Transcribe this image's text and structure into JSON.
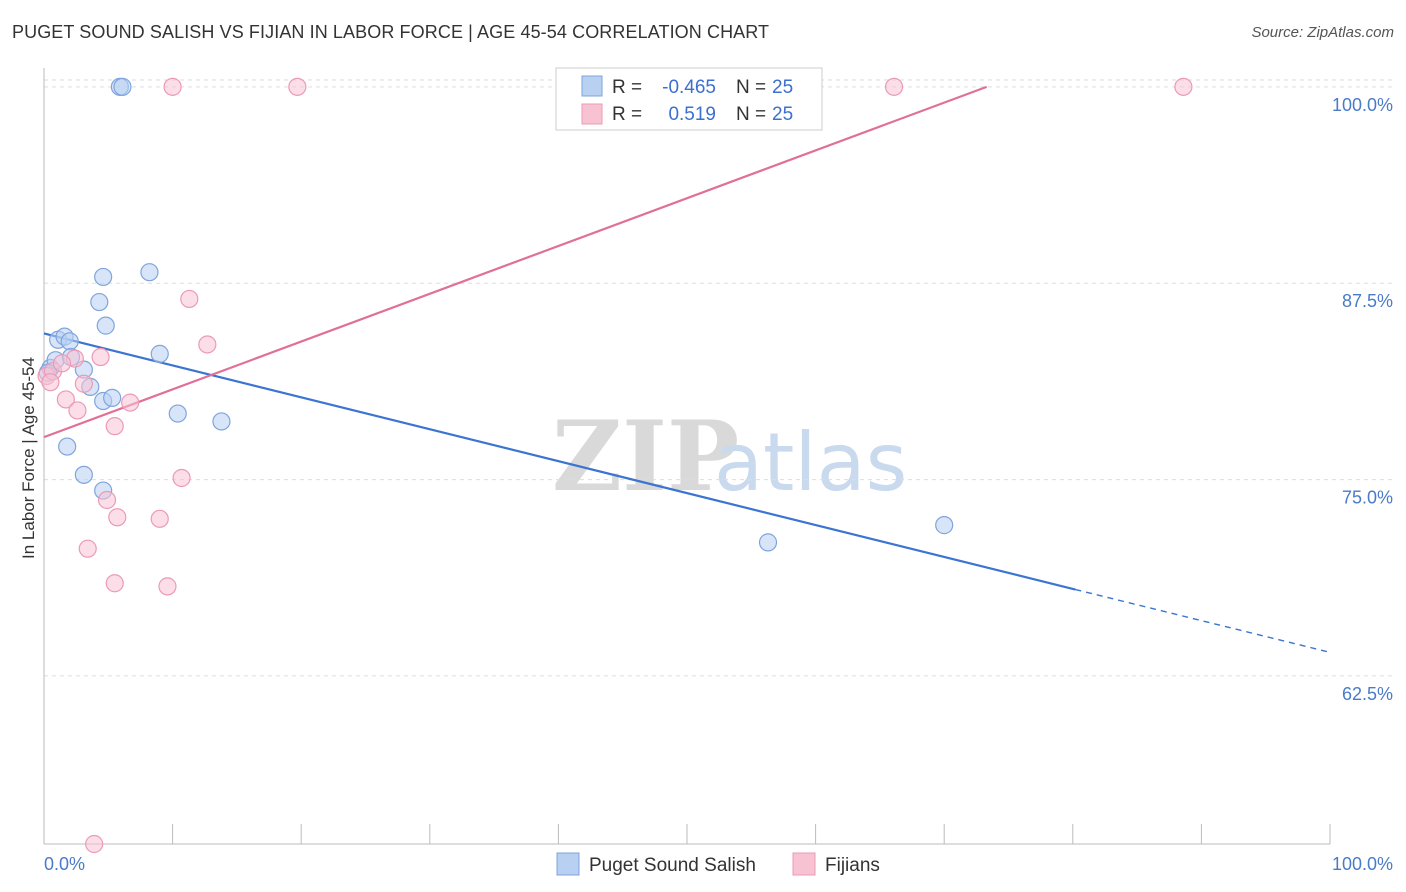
{
  "title": "PUGET SOUND SALISH VS FIJIAN IN LABOR FORCE | AGE 45-54 CORRELATION CHART",
  "source": "Source: ZipAtlas.com",
  "watermark": {
    "zip": "ZIP",
    "atlas": "atlas"
  },
  "colors": {
    "blue": "#3b74d1",
    "blue_fill": "#b8d0f2",
    "blue_stroke": "#7ea5de",
    "pink": "#e07098",
    "pink_fill": "#f7c3d3",
    "pink_stroke": "#ec9ab5",
    "tick_label": "#4a7bc8",
    "grid": "#dddddd"
  },
  "legend": {
    "rows": [
      {
        "r_label": "R =",
        "r_value": "-0.465",
        "n_label": "N =",
        "n_value": "25"
      },
      {
        "r_label": "R =",
        "r_value": "0.519",
        "n_label": "N =",
        "n_value": "25"
      }
    ]
  },
  "chart_data": {
    "type": "scatter",
    "title": "PUGET SOUND SALISH VS FIJIAN IN LABOR FORCE | AGE 45-54 CORRELATION CHART",
    "xlabel": "",
    "ylabel": "In Labor Force | Age 45-54",
    "xlim": [
      0,
      100
    ],
    "ylim": [
      51.8,
      101.2
    ],
    "x_tick_labels": [
      "0.0%",
      "100.0%"
    ],
    "y_ticks": [
      62.5,
      75.0,
      87.5,
      100.0
    ],
    "y_tick_labels": [
      "62.5%",
      "75.0%",
      "87.5%",
      "100.0%"
    ],
    "grid": true,
    "series": [
      {
        "name": "Puget Sound Salish",
        "color": "blue",
        "points": [
          [
            0.5,
            82.1
          ],
          [
            0.9,
            82.6
          ],
          [
            1.1,
            83.9
          ],
          [
            1.6,
            84.1
          ],
          [
            2.0,
            83.8
          ],
          [
            2.1,
            82.8
          ],
          [
            1.8,
            77.1
          ],
          [
            3.1,
            82.0
          ],
          [
            3.6,
            80.9
          ],
          [
            3.1,
            75.3
          ],
          [
            4.6,
            80.0
          ],
          [
            5.3,
            80.2
          ],
          [
            4.6,
            74.3
          ],
          [
            4.8,
            84.8
          ],
          [
            4.6,
            87.9
          ],
          [
            4.3,
            86.3
          ],
          [
            8.2,
            88.2
          ],
          [
            9.0,
            83.0
          ],
          [
            10.4,
            79.2
          ],
          [
            13.8,
            78.7
          ],
          [
            5.9,
            100.0
          ],
          [
            6.1,
            100.0
          ],
          [
            56.3,
            71.0
          ],
          [
            70.0,
            72.1
          ],
          [
            0.3,
            81.8
          ]
        ],
        "trend": {
          "x": [
            0,
            80.2
          ],
          "y": [
            84.3,
            68.0
          ],
          "dashed_to": [
            100,
            64.0
          ]
        }
      },
      {
        "name": "Fijians",
        "color": "pink",
        "points": [
          [
            0.2,
            81.6
          ],
          [
            0.7,
            81.9
          ],
          [
            2.4,
            82.7
          ],
          [
            1.7,
            80.1
          ],
          [
            2.6,
            79.4
          ],
          [
            3.1,
            81.1
          ],
          [
            4.4,
            82.8
          ],
          [
            5.5,
            78.4
          ],
          [
            6.7,
            79.9
          ],
          [
            11.3,
            86.5
          ],
          [
            12.7,
            83.6
          ],
          [
            10.7,
            75.1
          ],
          [
            4.9,
            73.7
          ],
          [
            5.7,
            72.6
          ],
          [
            9.0,
            72.5
          ],
          [
            3.4,
            70.6
          ],
          [
            5.5,
            68.4
          ],
          [
            9.6,
            68.2
          ],
          [
            3.9,
            51.8
          ],
          [
            10.0,
            100.0
          ],
          [
            19.7,
            100.0
          ],
          [
            66.1,
            100.0
          ],
          [
            88.6,
            100.0
          ],
          [
            0.5,
            81.2
          ],
          [
            1.4,
            82.4
          ]
        ],
        "trend": {
          "x": [
            0,
            73.3
          ],
          "y": [
            77.7,
            100.0
          ]
        }
      }
    ]
  },
  "bottom_legend": [
    {
      "label": "Puget Sound Salish",
      "color": "blue"
    },
    {
      "label": "Fijians",
      "color": "pink"
    }
  ]
}
